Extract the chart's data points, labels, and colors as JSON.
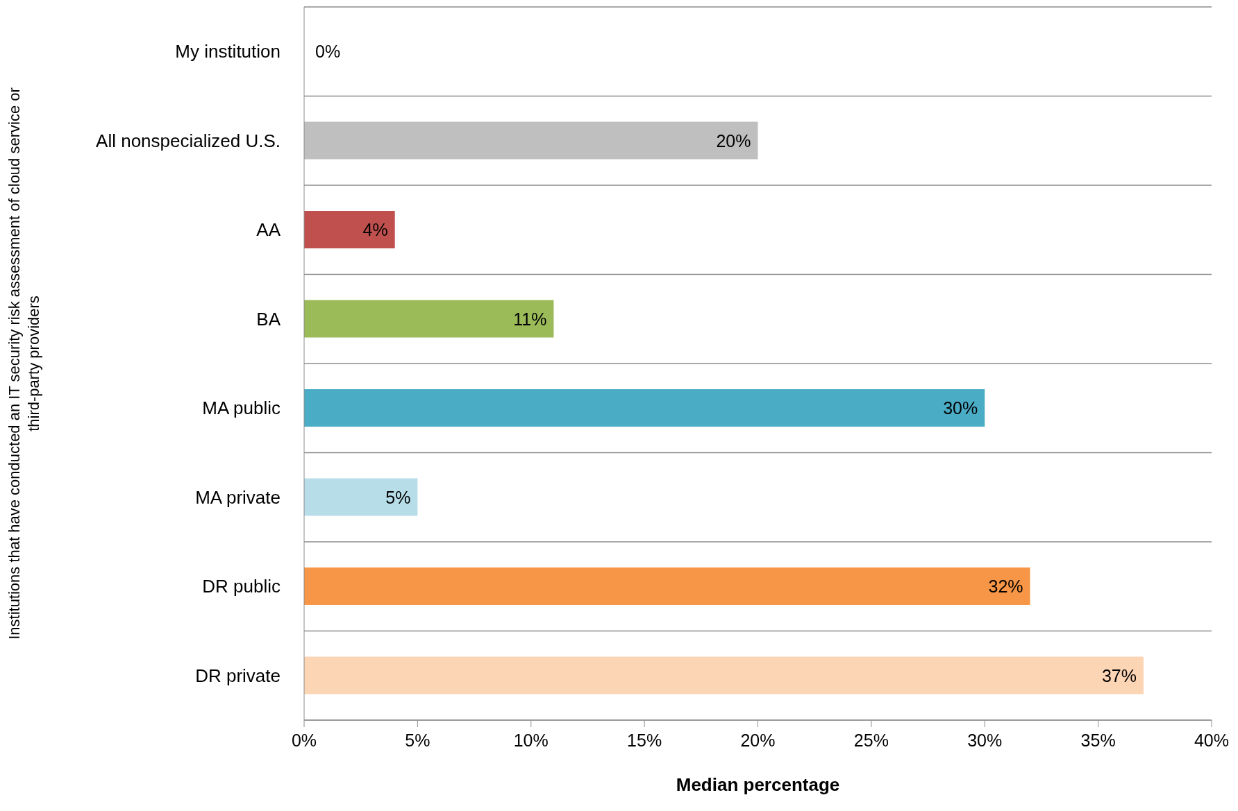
{
  "chart_data": {
    "type": "bar",
    "orientation": "horizontal",
    "xlabel": "Median percentage",
    "ylabel": "Institutions that have conducted an IT security risk assessment of cloud service or third-party providers",
    "categories": [
      "My institution",
      "All nonspecialized U.S.",
      "AA",
      "BA",
      "MA public",
      "MA private",
      "DR public",
      "DR private"
    ],
    "values": [
      0,
      20,
      4,
      11,
      30,
      5,
      32,
      37
    ],
    "colors": [
      "#4f81bd",
      "#bfbfbf",
      "#c0504d",
      "#9bbb59",
      "#4bacc6",
      "#b7dde8",
      "#f79646",
      "#fcd5b5"
    ],
    "value_labels": [
      "0%",
      "20%",
      "4%",
      "11%",
      "30%",
      "5%",
      "32%",
      "37%"
    ],
    "xlim": [
      0,
      40
    ],
    "xticks": [
      {
        "value": 0,
        "label": "0%"
      },
      {
        "value": 5,
        "label": "5%"
      },
      {
        "value": 10,
        "label": "10%"
      },
      {
        "value": 15,
        "label": "15%"
      },
      {
        "value": 20,
        "label": "20%"
      },
      {
        "value": 25,
        "label": "25%"
      },
      {
        "value": 30,
        "label": "30%"
      },
      {
        "value": 35,
        "label": "35%"
      },
      {
        "value": 40,
        "label": "40%"
      }
    ],
    "grid": "y"
  }
}
